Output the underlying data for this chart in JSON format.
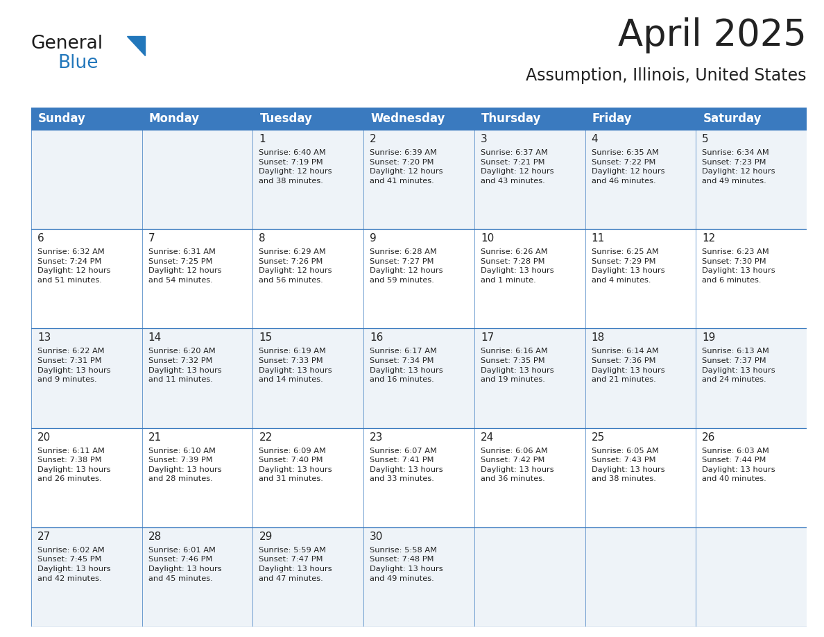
{
  "title": "April 2025",
  "subtitle": "Assumption, Illinois, United States",
  "header_color": "#3a7abf",
  "header_text_color": "#ffffff",
  "row_bg_odd": "#eef3f8",
  "row_bg_even": "#ffffff",
  "border_color": "#3a7abf",
  "text_color": "#222222",
  "day_names": [
    "Sunday",
    "Monday",
    "Tuesday",
    "Wednesday",
    "Thursday",
    "Friday",
    "Saturday"
  ],
  "title_fontsize": 38,
  "subtitle_fontsize": 17,
  "header_fontsize": 12,
  "day_num_fontsize": 11,
  "cell_text_fontsize": 8.2,
  "weeks": [
    [
      {
        "day": "",
        "info": ""
      },
      {
        "day": "",
        "info": ""
      },
      {
        "day": "1",
        "info": "Sunrise: 6:40 AM\nSunset: 7:19 PM\nDaylight: 12 hours\nand 38 minutes."
      },
      {
        "day": "2",
        "info": "Sunrise: 6:39 AM\nSunset: 7:20 PM\nDaylight: 12 hours\nand 41 minutes."
      },
      {
        "day": "3",
        "info": "Sunrise: 6:37 AM\nSunset: 7:21 PM\nDaylight: 12 hours\nand 43 minutes."
      },
      {
        "day": "4",
        "info": "Sunrise: 6:35 AM\nSunset: 7:22 PM\nDaylight: 12 hours\nand 46 minutes."
      },
      {
        "day": "5",
        "info": "Sunrise: 6:34 AM\nSunset: 7:23 PM\nDaylight: 12 hours\nand 49 minutes."
      }
    ],
    [
      {
        "day": "6",
        "info": "Sunrise: 6:32 AM\nSunset: 7:24 PM\nDaylight: 12 hours\nand 51 minutes."
      },
      {
        "day": "7",
        "info": "Sunrise: 6:31 AM\nSunset: 7:25 PM\nDaylight: 12 hours\nand 54 minutes."
      },
      {
        "day": "8",
        "info": "Sunrise: 6:29 AM\nSunset: 7:26 PM\nDaylight: 12 hours\nand 56 minutes."
      },
      {
        "day": "9",
        "info": "Sunrise: 6:28 AM\nSunset: 7:27 PM\nDaylight: 12 hours\nand 59 minutes."
      },
      {
        "day": "10",
        "info": "Sunrise: 6:26 AM\nSunset: 7:28 PM\nDaylight: 13 hours\nand 1 minute."
      },
      {
        "day": "11",
        "info": "Sunrise: 6:25 AM\nSunset: 7:29 PM\nDaylight: 13 hours\nand 4 minutes."
      },
      {
        "day": "12",
        "info": "Sunrise: 6:23 AM\nSunset: 7:30 PM\nDaylight: 13 hours\nand 6 minutes."
      }
    ],
    [
      {
        "day": "13",
        "info": "Sunrise: 6:22 AM\nSunset: 7:31 PM\nDaylight: 13 hours\nand 9 minutes."
      },
      {
        "day": "14",
        "info": "Sunrise: 6:20 AM\nSunset: 7:32 PM\nDaylight: 13 hours\nand 11 minutes."
      },
      {
        "day": "15",
        "info": "Sunrise: 6:19 AM\nSunset: 7:33 PM\nDaylight: 13 hours\nand 14 minutes."
      },
      {
        "day": "16",
        "info": "Sunrise: 6:17 AM\nSunset: 7:34 PM\nDaylight: 13 hours\nand 16 minutes."
      },
      {
        "day": "17",
        "info": "Sunrise: 6:16 AM\nSunset: 7:35 PM\nDaylight: 13 hours\nand 19 minutes."
      },
      {
        "day": "18",
        "info": "Sunrise: 6:14 AM\nSunset: 7:36 PM\nDaylight: 13 hours\nand 21 minutes."
      },
      {
        "day": "19",
        "info": "Sunrise: 6:13 AM\nSunset: 7:37 PM\nDaylight: 13 hours\nand 24 minutes."
      }
    ],
    [
      {
        "day": "20",
        "info": "Sunrise: 6:11 AM\nSunset: 7:38 PM\nDaylight: 13 hours\nand 26 minutes."
      },
      {
        "day": "21",
        "info": "Sunrise: 6:10 AM\nSunset: 7:39 PM\nDaylight: 13 hours\nand 28 minutes."
      },
      {
        "day": "22",
        "info": "Sunrise: 6:09 AM\nSunset: 7:40 PM\nDaylight: 13 hours\nand 31 minutes."
      },
      {
        "day": "23",
        "info": "Sunrise: 6:07 AM\nSunset: 7:41 PM\nDaylight: 13 hours\nand 33 minutes."
      },
      {
        "day": "24",
        "info": "Sunrise: 6:06 AM\nSunset: 7:42 PM\nDaylight: 13 hours\nand 36 minutes."
      },
      {
        "day": "25",
        "info": "Sunrise: 6:05 AM\nSunset: 7:43 PM\nDaylight: 13 hours\nand 38 minutes."
      },
      {
        "day": "26",
        "info": "Sunrise: 6:03 AM\nSunset: 7:44 PM\nDaylight: 13 hours\nand 40 minutes."
      }
    ],
    [
      {
        "day": "27",
        "info": "Sunrise: 6:02 AM\nSunset: 7:45 PM\nDaylight: 13 hours\nand 42 minutes."
      },
      {
        "day": "28",
        "info": "Sunrise: 6:01 AM\nSunset: 7:46 PM\nDaylight: 13 hours\nand 45 minutes."
      },
      {
        "day": "29",
        "info": "Sunrise: 5:59 AM\nSunset: 7:47 PM\nDaylight: 13 hours\nand 47 minutes."
      },
      {
        "day": "30",
        "info": "Sunrise: 5:58 AM\nSunset: 7:48 PM\nDaylight: 13 hours\nand 49 minutes."
      },
      {
        "day": "",
        "info": ""
      },
      {
        "day": "",
        "info": ""
      },
      {
        "day": "",
        "info": ""
      }
    ]
  ],
  "logo_color_general": "#1a1a1a",
  "logo_color_blue": "#2277bb"
}
